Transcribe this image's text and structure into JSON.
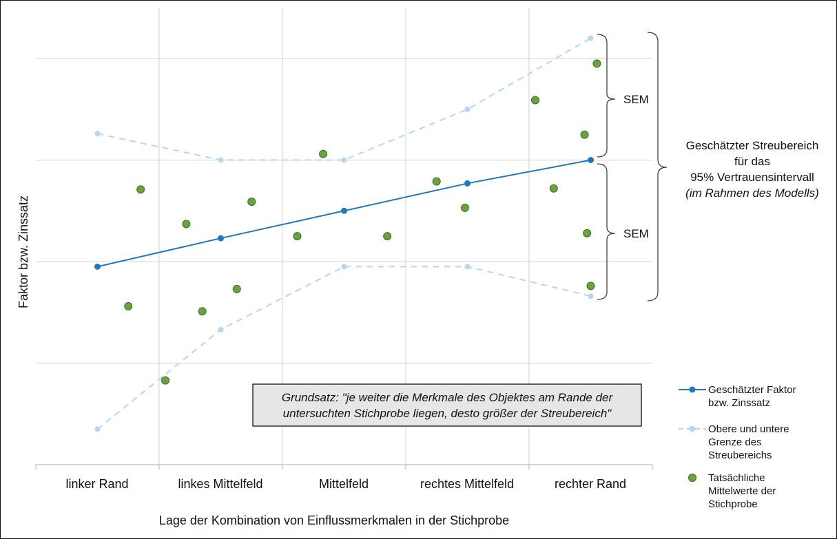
{
  "chart_data": {
    "type": "line",
    "title": "",
    "xlabel": "Lage der Kombination von Einflussmerkmalen in der Stichprobe",
    "ylabel": "Faktor bzw. Zinssatz",
    "categories": [
      "linker Rand",
      "linkes Mittelfeld",
      "Mittelfeld",
      "rechtes Mittelfeld",
      "rechter Rand"
    ],
    "x_range": [
      0,
      5
    ],
    "ylim": [
      0,
      4.5
    ],
    "y_gridlines": [
      1,
      2,
      3,
      4
    ],
    "y_tick_labels_shown": false,
    "grid": true,
    "legend_position": "right",
    "series": [
      {
        "name": "Geschätzter Faktor bzw. Zinssatz",
        "kind": "line-marker",
        "color": "#1f77c2",
        "x": [
          0.5,
          1.5,
          2.5,
          3.5,
          4.5
        ],
        "y": [
          1.95,
          2.23,
          2.5,
          2.77,
          3.0
        ]
      },
      {
        "name": "Obere und untere Grenze des Streubereichs",
        "kind": "dashed-upper",
        "color": "#b9d6ee",
        "x": [
          0.5,
          1.5,
          2.5,
          3.5,
          4.5
        ],
        "y": [
          3.26,
          3.0,
          3.0,
          3.5,
          4.2
        ]
      },
      {
        "name": "Obere und untere Grenze des Streubereichs",
        "kind": "dashed-lower",
        "color": "#b9d6ee",
        "x": [
          0.5,
          1.5,
          2.5,
          3.5,
          4.5
        ],
        "y": [
          0.35,
          1.33,
          1.95,
          1.95,
          1.66
        ]
      },
      {
        "name": "Tatsächliche Mittelwerte der Stichprobe",
        "kind": "scatter",
        "color": "#6aa33e",
        "x": [
          0.85,
          0.75,
          1.05,
          1.35,
          1.22,
          1.75,
          1.63,
          2.33,
          2.12,
          2.85,
          3.25,
          3.48,
          4.05,
          4.2,
          4.45,
          4.55,
          4.5,
          4.47
        ],
        "y": [
          2.71,
          1.56,
          0.83,
          1.51,
          2.37,
          2.59,
          1.73,
          3.06,
          2.25,
          2.25,
          2.79,
          2.53,
          3.59,
          2.72,
          3.25,
          3.95,
          1.76,
          2.28
        ]
      }
    ],
    "annotations": {
      "sem_upper": "SEM",
      "sem_lower": "SEM",
      "range_line1": "Geschätzter Streubereich",
      "range_line2": "für das",
      "range_line3": "95% Vertrauensintervall",
      "range_line4": "(im Rahmen des Modells)",
      "note_line1": "Grundsatz: \"je weiter die Merkmale des Objektes am Rande der",
      "note_line2": "untersuchten Stichprobe liegen, desto größer der Streubereich\""
    },
    "legend": {
      "line1_a": "Geschätzter Faktor",
      "line1_b": "bzw. Zinssatz",
      "line2_a": "Obere und untere",
      "line2_b": "Grenze des",
      "line2_c": "Streubereichs",
      "line3_a": "Tatsächliche",
      "line3_b": "Mittelwerte der",
      "line3_c": "Stichprobe"
    }
  }
}
